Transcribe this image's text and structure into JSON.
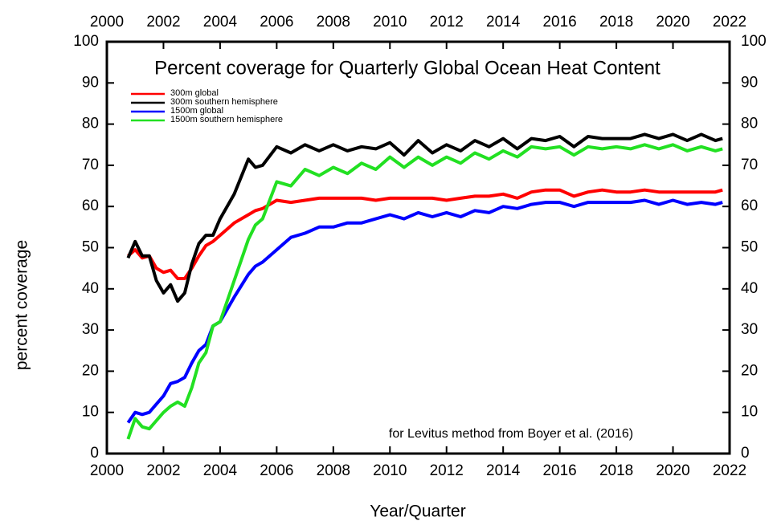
{
  "chart_data": {
    "type": "line",
    "title": "Percent coverage for Quarterly Global Ocean Heat Content",
    "annotation": "for Levitus method from Boyer et al. (2016)",
    "xlabel": "Year/Quarter",
    "ylabel": "percent coverage",
    "x": [
      2000.75,
      2001,
      2001.25,
      2001.5,
      2001.75,
      2002,
      2002.25,
      2002.5,
      2002.75,
      2003,
      2003.25,
      2003.5,
      2003.75,
      2004,
      2004.5,
      2005,
      2005.25,
      2005.5,
      2006,
      2006.5,
      2007,
      2007.5,
      2008,
      2008.5,
      2009,
      2009.5,
      2010,
      2010.5,
      2011,
      2011.5,
      2012,
      2012.5,
      2013,
      2013.5,
      2014,
      2014.5,
      2015,
      2015.5,
      2016,
      2016.5,
      2017,
      2017.5,
      2018,
      2018.5,
      2019,
      2019.5,
      2020,
      2020.5,
      2021,
      2021.5,
      2021.75
    ],
    "series": [
      {
        "name": "300m global",
        "color": "#ff0000",
        "values": [
          48,
          49.5,
          47.5,
          48,
          45,
          44,
          44.5,
          42.5,
          42.5,
          45,
          48,
          50.5,
          51.5,
          53,
          56,
          58,
          59,
          59.5,
          61.5,
          61,
          61.5,
          62,
          62,
          62,
          62,
          61.5,
          62,
          62,
          62,
          62,
          61.5,
          62,
          62.5,
          62.5,
          63,
          62,
          63.5,
          64,
          64,
          62.5,
          63.5,
          64,
          63.5,
          63.5,
          64,
          63.5,
          63.5,
          63.5,
          63.5,
          63.5,
          64
        ]
      },
      {
        "name": "300m southern hemisphere",
        "color": "#000000",
        "values": [
          47.5,
          51.5,
          48,
          48,
          42,
          39,
          41,
          37,
          39,
          46,
          51,
          53,
          53,
          57,
          63,
          71.5,
          69.5,
          70,
          74.5,
          73,
          75,
          73.5,
          75,
          73.5,
          74.5,
          74,
          75.5,
          72.5,
          76,
          73,
          75,
          73.5,
          76,
          74.5,
          76.5,
          74,
          76.5,
          76,
          77,
          74.5,
          77,
          76.5,
          76.5,
          76.5,
          77.5,
          76.5,
          77.5,
          76,
          77.5,
          76,
          76.5
        ]
      },
      {
        "name": "1500m global",
        "color": "#0000ff",
        "values": [
          7.5,
          10,
          9.5,
          10,
          12,
          14,
          17,
          17.5,
          18.5,
          22,
          25,
          26.5,
          31,
          32,
          38,
          43.5,
          45.5,
          46.5,
          49.5,
          52.5,
          53.5,
          55,
          55,
          56,
          56,
          57,
          58,
          57,
          58.5,
          57.5,
          58.5,
          57.5,
          59,
          58.5,
          60,
          59.5,
          60.5,
          61,
          61,
          60,
          61,
          61,
          61,
          61,
          61.5,
          60.5,
          61.5,
          60.5,
          61,
          60.5,
          61
        ]
      },
      {
        "name": "1500m southern hemisphere",
        "color": "#22e022",
        "values": [
          3.5,
          8.5,
          6.5,
          6,
          8,
          10,
          11.5,
          12.5,
          11.5,
          16,
          22,
          24.5,
          31,
          32,
          42,
          52,
          55.5,
          57,
          66,
          65,
          69,
          67.5,
          69.5,
          68,
          70.5,
          69,
          72,
          69.5,
          72,
          70,
          72,
          70.5,
          73,
          71.5,
          73.5,
          72,
          74.5,
          74,
          74.5,
          72.5,
          74.5,
          74,
          74.5,
          74,
          75,
          74,
          75,
          73.5,
          74.5,
          73.5,
          74
        ]
      }
    ],
    "xlim": [
      2000,
      2022
    ],
    "xticks": [
      2000,
      2002,
      2004,
      2006,
      2008,
      2010,
      2012,
      2014,
      2016,
      2018,
      2020,
      2022
    ],
    "ylim": [
      0,
      100
    ],
    "yticks": [
      0,
      10,
      20,
      30,
      40,
      50,
      60,
      70,
      80,
      90,
      100
    ]
  }
}
